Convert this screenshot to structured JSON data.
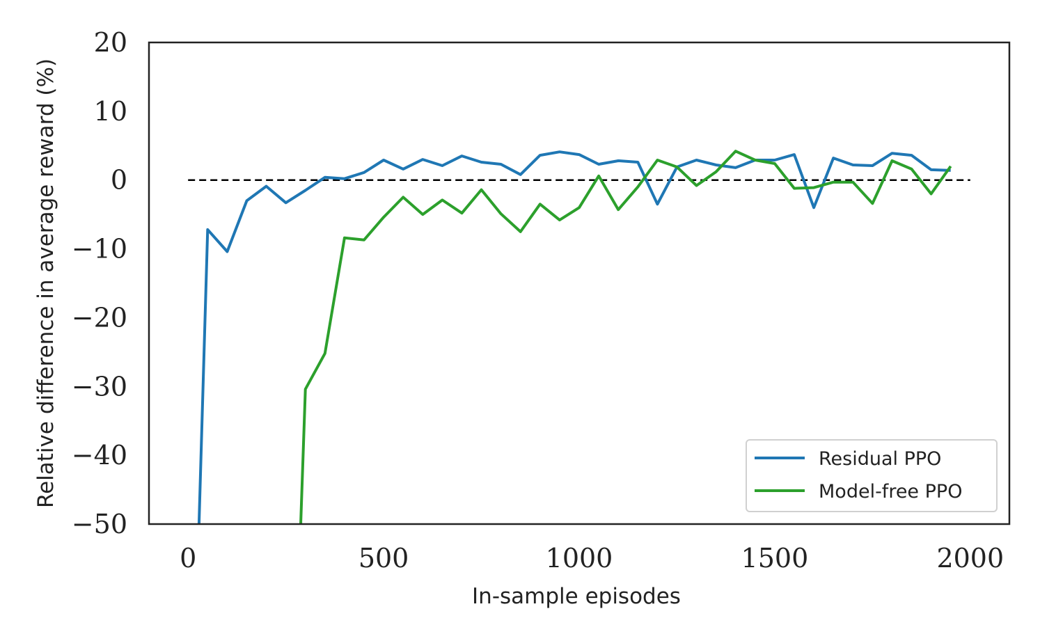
{
  "chart_data": {
    "type": "line",
    "title": "",
    "xlabel": "In-sample episodes",
    "ylabel": "Relative difference in average reward (%)",
    "xlim": [
      -100,
      2100
    ],
    "ylim": [
      -50,
      20
    ],
    "xticks": [
      0,
      500,
      1000,
      1500,
      2000
    ],
    "xtick_labels": [
      "0",
      "500",
      "1000",
      "1500",
      "2000"
    ],
    "yticks": [
      20,
      10,
      0,
      -10,
      -20,
      -30,
      -40,
      -50
    ],
    "ytick_labels": [
      "20",
      "10",
      "0",
      "−10",
      "−20",
      "−30",
      "−40",
      "−50"
    ],
    "grid": false,
    "legend_position": "lower-right",
    "reference_line": {
      "y": 0,
      "style": "dashed",
      "color": "#000000",
      "x_range": [
        0,
        2000
      ]
    },
    "series": [
      {
        "name": "Residual PPO",
        "color": "#1f77b4",
        "x": [
          28,
          50,
          100,
          150,
          200,
          250,
          300,
          350,
          400,
          450,
          500,
          550,
          600,
          650,
          700,
          750,
          800,
          850,
          900,
          950,
          1000,
          1050,
          1100,
          1150,
          1200,
          1250,
          1300,
          1350,
          1400,
          1450,
          1500,
          1550,
          1600,
          1650,
          1700,
          1750,
          1800,
          1850,
          1900,
          1950
        ],
        "y": [
          -50,
          -7.2,
          -10.4,
          -3.0,
          -0.9,
          -3.3,
          -1.5,
          0.4,
          0.2,
          1.1,
          2.9,
          1.6,
          3.0,
          2.1,
          3.5,
          2.6,
          2.3,
          0.8,
          3.6,
          4.1,
          3.7,
          2.3,
          2.8,
          2.6,
          -3.5,
          1.9,
          2.9,
          2.2,
          1.8,
          2.9,
          2.9,
          3.7,
          -4.0,
          3.2,
          2.2,
          2.1,
          3.9,
          3.6,
          1.5,
          1.4
        ]
      },
      {
        "name": "Model-free PPO",
        "color": "#2ca02c",
        "x": [
          288,
          300,
          350,
          400,
          450,
          500,
          550,
          600,
          650,
          700,
          750,
          800,
          850,
          900,
          950,
          1000,
          1050,
          1100,
          1150,
          1200,
          1250,
          1300,
          1350,
          1400,
          1450,
          1500,
          1550,
          1600,
          1650,
          1700,
          1750,
          1800,
          1850,
          1900,
          1950
        ],
        "y": [
          -50,
          -30.4,
          -25.2,
          -8.4,
          -8.7,
          -5.4,
          -2.5,
          -5.0,
          -2.9,
          -4.8,
          -1.4,
          -4.9,
          -7.5,
          -3.5,
          -5.8,
          -4.0,
          0.6,
          -4.3,
          -1.0,
          2.9,
          1.9,
          -0.8,
          1.2,
          4.2,
          2.9,
          2.4,
          -1.2,
          -1.1,
          -0.3,
          -0.3,
          -3.4,
          2.8,
          1.6,
          -2.0,
          2.0
        ]
      }
    ]
  }
}
